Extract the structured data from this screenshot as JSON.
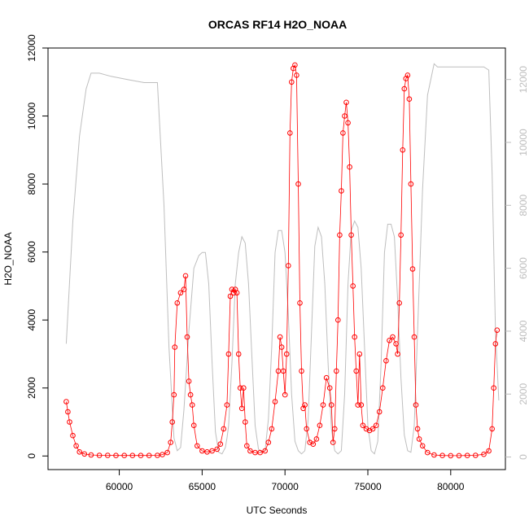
{
  "chart_data": {
    "type": "scatter",
    "title": "ORCAS RF14 H2O_NOAA",
    "xlabel": "UTC Seconds",
    "ylabel": "H2O_NOAA",
    "xlim": [
      55700,
      83300
    ],
    "ylim": [
      -400,
      12000
    ],
    "y2lim": [
      -400,
      13000
    ],
    "x_ticks": [
      60000,
      65000,
      70000,
      75000,
      80000
    ],
    "x_tick_labels": [
      "60000",
      "65000",
      "70000",
      "75000",
      "80000"
    ],
    "y_ticks": [
      0,
      2000,
      4000,
      6000,
      8000,
      10000,
      12000
    ],
    "y_tick_labels": [
      "0",
      "2000",
      "4000",
      "6000",
      "8000",
      "10000",
      "12000"
    ],
    "y2_ticks": [
      0,
      2000,
      4000,
      6000,
      8000,
      10000,
      12000
    ],
    "y2_tick_labels": [
      "0",
      "2000",
      "4000",
      "6000",
      "8000",
      "10000",
      "12000"
    ],
    "colors": {
      "h2o": "#ff0000",
      "altitude": "#bebebe",
      "axis": "#000000",
      "right_axis": "#bebebe"
    },
    "series": [
      {
        "marker": "open-circle",
        "x": [
          56800,
          56900,
          57000,
          57200,
          57400,
          57600,
          57900,
          58300,
          58800,
          59300,
          59800,
          60300,
          60800,
          61300,
          61800,
          62300,
          62600,
          62900,
          63100,
          63200,
          63300,
          63350,
          63500,
          63700,
          63900,
          64000,
          64100,
          64200,
          64300,
          64400,
          64500,
          64700,
          65000,
          65300,
          65600,
          65900,
          66100,
          66300,
          66500,
          66600,
          66700,
          66800,
          66900,
          67000,
          67100,
          67200,
          67300,
          67400,
          67500,
          67600,
          67700,
          67900,
          68200,
          68500,
          68800,
          69000,
          69200,
          69400,
          69600,
          69700,
          69800,
          69900,
          70000,
          70100,
          70200,
          70300,
          70400,
          70500,
          70600,
          70700,
          70800,
          70900,
          71000,
          71100,
          71200,
          71300,
          71500,
          71700,
          71900,
          72100,
          72300,
          72500,
          72700,
          72800,
          72900,
          73000,
          73100,
          73200,
          73300,
          73400,
          73500,
          73600,
          73700,
          73800,
          73900,
          74000,
          74100,
          74200,
          74300,
          74400,
          74500,
          74600,
          74700,
          74900,
          75100,
          75300,
          75500,
          75700,
          75900,
          76100,
          76300,
          76500,
          76700,
          76800,
          76900,
          77000,
          77100,
          77200,
          77300,
          77400,
          77500,
          77600,
          77700,
          77800,
          77900,
          78000,
          78100,
          78300,
          78600,
          79000,
          79500,
          80000,
          80500,
          81000,
          81500,
          82000,
          82300,
          82500,
          82600,
          82700,
          82800
        ],
        "y": [
          1600,
          1300,
          1000,
          600,
          300,
          120,
          60,
          30,
          20,
          20,
          15,
          15,
          15,
          15,
          15,
          20,
          40,
          100,
          400,
          1000,
          1800,
          3200,
          4500,
          4800,
          4900,
          5300,
          3500,
          2200,
          1800,
          1500,
          900,
          300,
          150,
          120,
          150,
          200,
          350,
          800,
          1500,
          3000,
          4700,
          4900,
          4800,
          4900,
          4800,
          3000,
          2000,
          1400,
          2000,
          1000,
          300,
          150,
          100,
          100,
          150,
          400,
          800,
          1600,
          2500,
          3500,
          3200,
          2500,
          1800,
          3000,
          5600,
          9500,
          11000,
          11400,
          11500,
          11200,
          8000,
          4500,
          2500,
          1400,
          1500,
          800,
          400,
          350,
          500,
          900,
          1500,
          2300,
          2000,
          1500,
          400,
          800,
          2500,
          4000,
          6500,
          7800,
          9500,
          10000,
          10400,
          9800,
          8500,
          6500,
          5000,
          3500,
          2500,
          1500,
          3000,
          1500,
          900,
          800,
          750,
          800,
          900,
          1300,
          2000,
          2800,
          3400,
          3500,
          3300,
          3000,
          4500,
          6500,
          9000,
          10800,
          11100,
          11200,
          10500,
          8000,
          5500,
          3500,
          1500,
          800,
          500,
          300,
          100,
          30,
          15,
          10,
          10,
          15,
          20,
          50,
          150,
          800,
          2000,
          3300,
          3700
        ]
      },
      {
        "marker": "line",
        "x": [
          56800,
          57200,
          57600,
          58000,
          58300,
          58800,
          59500,
          60500,
          61500,
          62300,
          62700,
          63000,
          63300,
          63500,
          63700,
          63900,
          64200,
          64500,
          64800,
          65000,
          65200,
          65400,
          65600,
          65800,
          66000,
          66200,
          66400,
          66500,
          66600,
          66800,
          67000,
          67200,
          67400,
          67600,
          67800,
          68000,
          68200,
          68400,
          68600,
          68800,
          69000,
          69200,
          69400,
          69600,
          69800,
          70000,
          70200,
          70400,
          70600,
          70800,
          71000,
          71200,
          71400,
          71600,
          71800,
          72000,
          72200,
          72400,
          72600,
          72800,
          73000,
          73200,
          73400,
          73600,
          73800,
          74000,
          74200,
          74400,
          74600,
          74800,
          75000,
          75200,
          75400,
          75600,
          75800,
          76000,
          76200,
          76400,
          76600,
          76800,
          77000,
          77200,
          77400,
          77600,
          77800,
          78000,
          78300,
          78600,
          79000,
          79200,
          79600,
          80000,
          80500,
          81000,
          81500,
          82000,
          82300,
          82500,
          82700,
          82900
        ],
        "y": [
          3600,
          7500,
          10200,
          11700,
          12200,
          12200,
          12100,
          12000,
          11900,
          11900,
          8000,
          3500,
          600,
          200,
          300,
          1500,
          4000,
          6000,
          6400,
          6500,
          6500,
          5500,
          3000,
          800,
          150,
          100,
          300,
          600,
          1000,
          3000,
          5500,
          6500,
          7000,
          6800,
          5500,
          3200,
          1000,
          250,
          150,
          200,
          1200,
          3500,
          6500,
          7200,
          7200,
          6500,
          4500,
          2000,
          500,
          200,
          100,
          200,
          1200,
          4000,
          6700,
          7300,
          7000,
          5500,
          3000,
          900,
          200,
          100,
          200,
          2000,
          5500,
          7200,
          7500,
          7300,
          6000,
          3500,
          1000,
          200,
          100,
          500,
          3000,
          6500,
          7400,
          7400,
          7000,
          5000,
          2500,
          700,
          200,
          150,
          1000,
          4000,
          8500,
          11500,
          12500,
          12400,
          12400,
          12400,
          12400,
          12400,
          12400,
          12400,
          12300,
          9000,
          4000,
          1800
        ]
      }
    ]
  }
}
